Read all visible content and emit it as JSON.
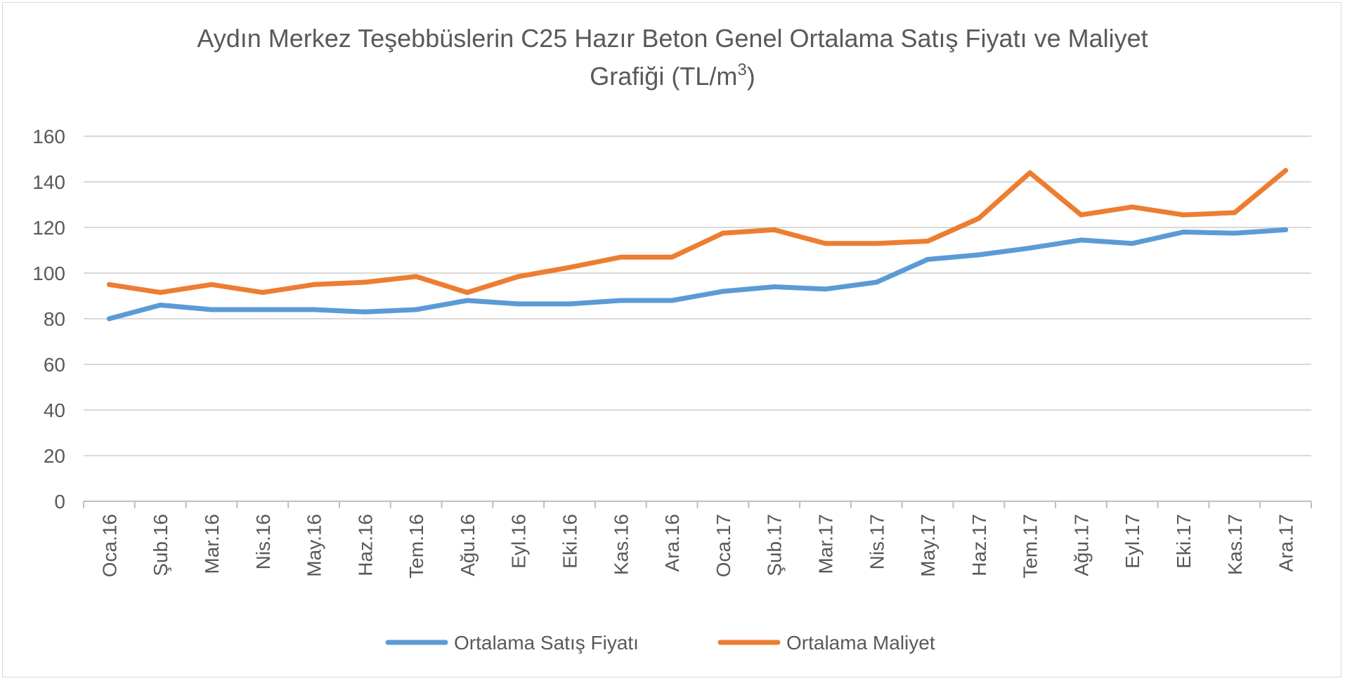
{
  "chart_data": {
    "type": "line",
    "title_line1": "Aydın Merkez Teşebbüslerin C25 Hazır Beton Genel Ortalama Satış Fiyatı ve Maliyet",
    "title_line2_main": "Grafiği (TL/m",
    "title_line2_sup": "3",
    "title_line2_end": ")",
    "categories": [
      "Oca.16",
      "Şub.16",
      "Mar.16",
      "Nis.16",
      "May.16",
      "Haz.16",
      "Tem.16",
      "Ağu.16",
      "Eyl.16",
      "Eki.16",
      "Kas.16",
      "Ara.16",
      "Oca.17",
      "Şub.17",
      "Mar.17",
      "Nis.17",
      "May.17",
      "Haz.17",
      "Tem.17",
      "Ağu.17",
      "Eyl.17",
      "Eki.17",
      "Kas.17",
      "Ara.17"
    ],
    "y_ticks": [
      "0",
      "20",
      "40",
      "60",
      "80",
      "100",
      "120",
      "140",
      "160"
    ],
    "ylim": [
      0,
      160
    ],
    "grid": true,
    "legend_position": "bottom",
    "series": [
      {
        "name": "Ortalama Satış Fiyatı",
        "color": "#5b9bd5",
        "values": [
          80,
          86,
          84,
          84,
          84,
          83,
          84,
          88,
          86.5,
          86.5,
          88,
          88,
          92,
          94,
          93,
          96,
          106,
          108,
          111,
          114.5,
          113,
          118,
          117.5,
          119
        ]
      },
      {
        "name": "Ortalama Maliyet",
        "color": "#ed7d31",
        "values": [
          95,
          91.5,
          95,
          91.5,
          95,
          96,
          98.5,
          91.5,
          98.5,
          102.5,
          107,
          107,
          117.5,
          119,
          113,
          113,
          114,
          124,
          144,
          125.5,
          129,
          125.5,
          126.5,
          145
        ]
      }
    ]
  }
}
